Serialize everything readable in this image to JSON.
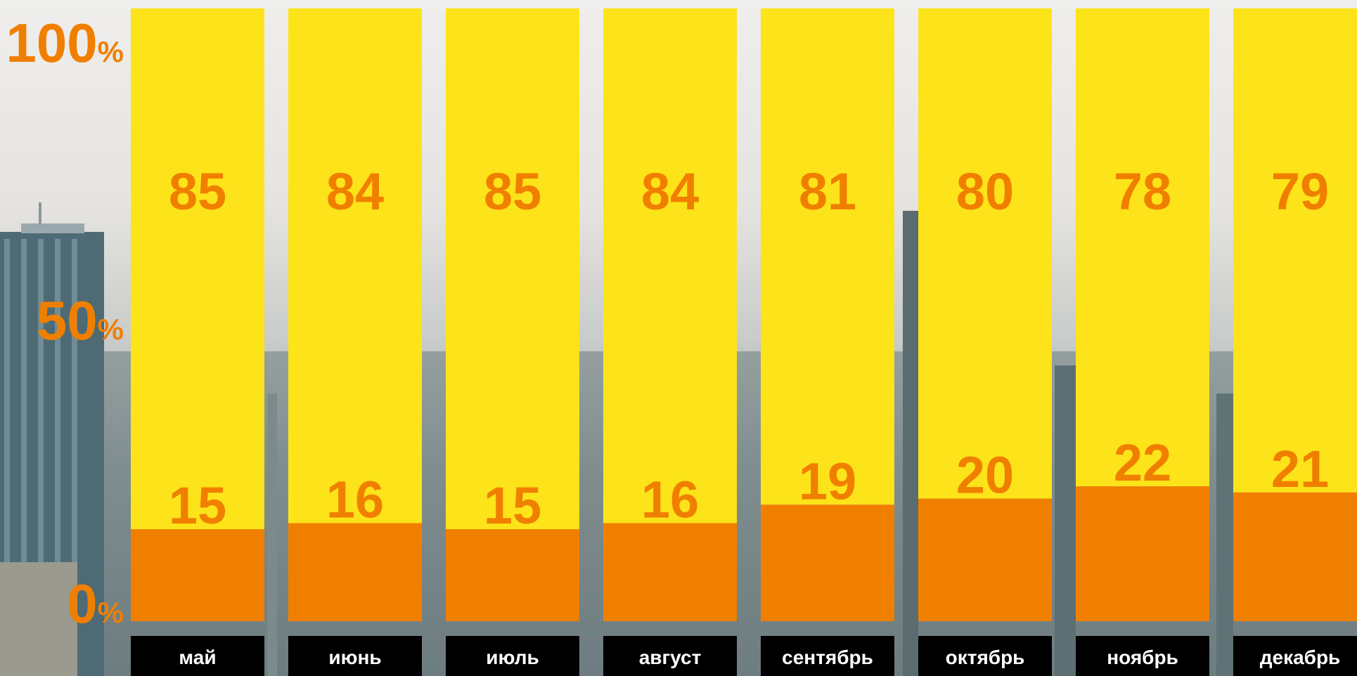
{
  "chart_data": {
    "type": "bar",
    "stacked": true,
    "categories": [
      "май",
      "июнь",
      "июль",
      "август",
      "сентябрь",
      "октябрь",
      "ноябрь",
      "декабрь"
    ],
    "series": [
      {
        "values": [
          15,
          16,
          15,
          16,
          19,
          20,
          22,
          21
        ],
        "color": "#f07f00"
      },
      {
        "values": [
          85,
          84,
          85,
          84,
          81,
          80,
          78,
          79
        ],
        "color": "#fde31a"
      }
    ],
    "ylim": [
      0,
      100
    ],
    "yticks": [
      {
        "value": 0,
        "num": "0",
        "unit": "%"
      },
      {
        "value": 50,
        "num": "50",
        "unit": "%"
      },
      {
        "value": 100,
        "num": "100",
        "unit": "%"
      }
    ],
    "grid": false,
    "background": "city skyline photo"
  }
}
